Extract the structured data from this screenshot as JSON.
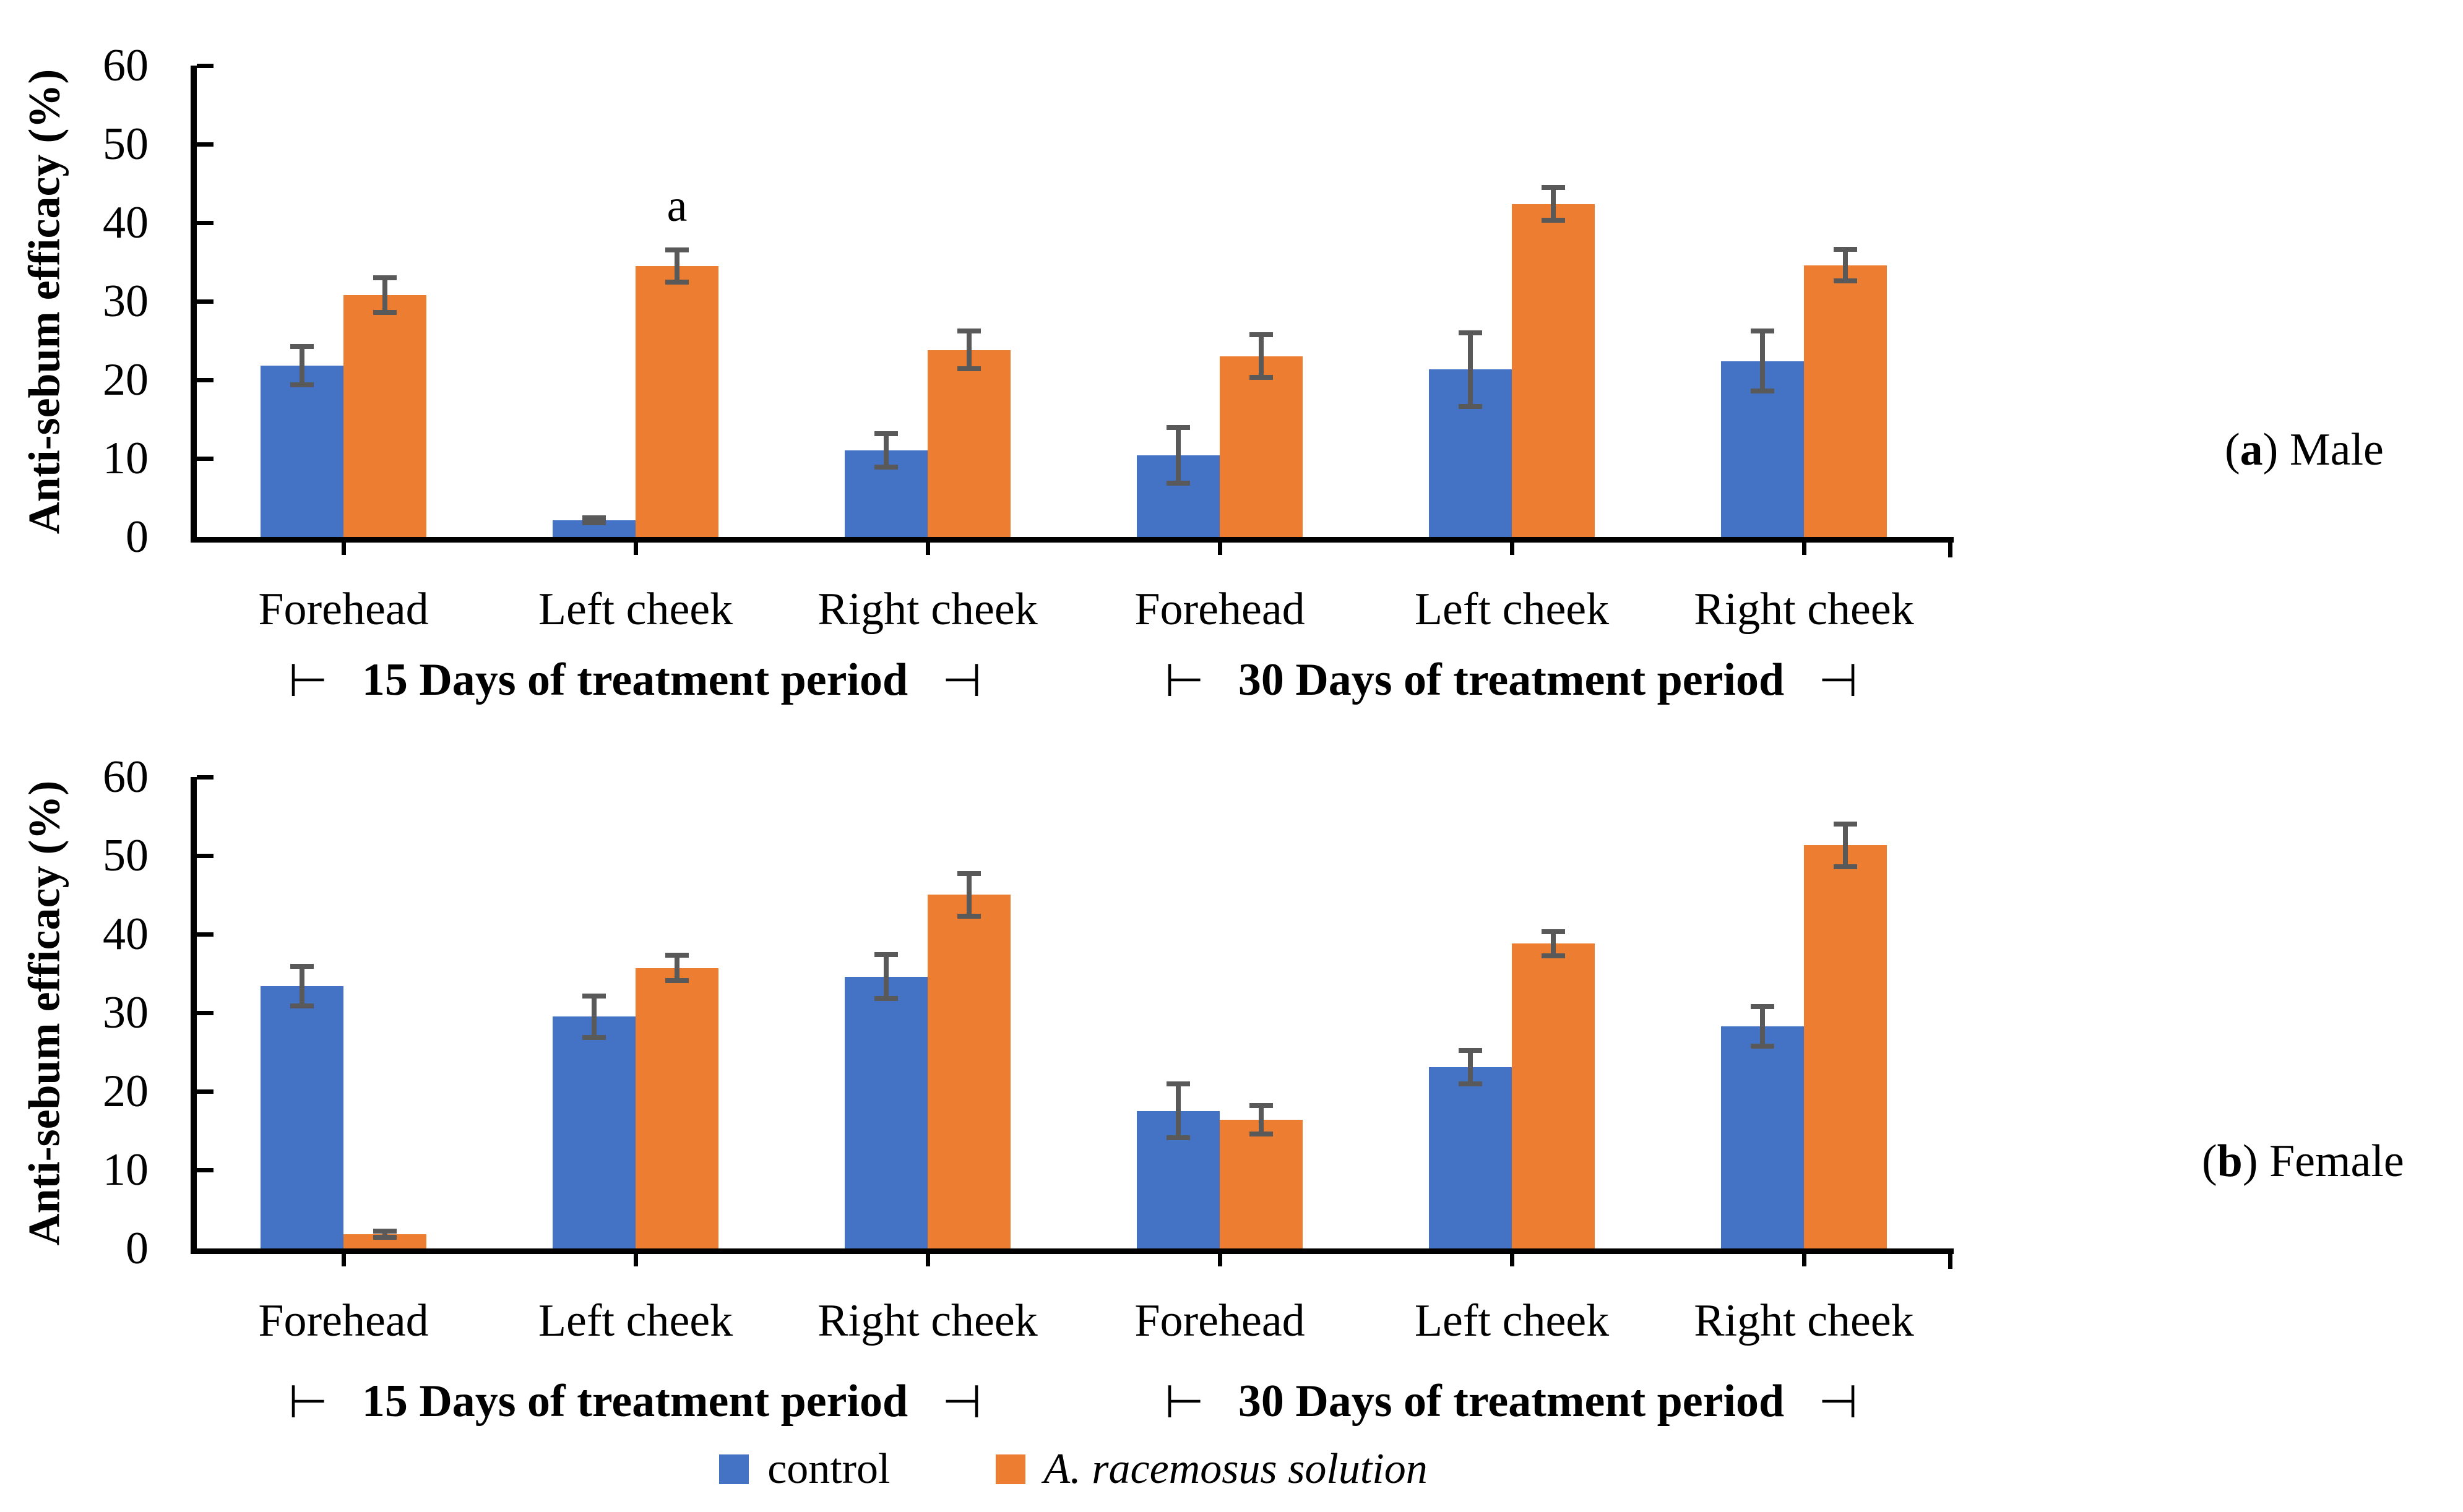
{
  "chart_data": [
    {
      "type": "bar",
      "panel": {
        "prefix": "(",
        "letter": "a",
        "suffix": ") ",
        "title": "Male"
      },
      "ylabel": "Anti-sebum efficacy (%)",
      "ylim": [
        0,
        60
      ],
      "yticks": [
        0,
        10,
        20,
        30,
        40,
        50,
        60
      ],
      "grid": false,
      "legend_position": "bottom",
      "categories": [
        "Forehead",
        "Left cheek",
        "Right cheek",
        "Forehead",
        "Left cheek",
        "Right cheek"
      ],
      "group_labels": [
        {
          "left_tack": "⊢",
          "text": "15 Days of treatment period",
          "right_tack": "⊣",
          "categories": [
            0,
            2
          ]
        },
        {
          "left_tack": "⊢",
          "text": "30 Days of treatment period",
          "right_tack": "⊣",
          "categories": [
            3,
            5
          ]
        }
      ],
      "series": [
        {
          "name": "control",
          "color": "#4472C4",
          "values": [
            21.8,
            2.1,
            11.0,
            10.4,
            21.3,
            22.4
          ],
          "errors": [
            2.5,
            0.4,
            2.2,
            3.6,
            4.8,
            3.9
          ]
        },
        {
          "name": "A. racemosus solution",
          "color": "#ED7D31",
          "values": [
            30.8,
            34.5,
            23.8,
            23.0,
            42.4,
            34.6
          ],
          "errors": [
            2.3,
            2.1,
            2.5,
            2.8,
            2.2,
            2.1
          ]
        }
      ],
      "annotations": [
        {
          "text": "a",
          "category": 1,
          "series": 1
        }
      ]
    },
    {
      "type": "bar",
      "panel": {
        "prefix": "(",
        "letter": "b",
        "suffix": ") ",
        "title": "Female"
      },
      "ylabel": "Anti-sebum efficacy (%)",
      "ylim": [
        0,
        60
      ],
      "yticks": [
        0,
        10,
        20,
        30,
        40,
        50,
        60
      ],
      "grid": false,
      "legend_position": "bottom",
      "categories": [
        "Forehead",
        "Left cheek",
        "Right cheek",
        "Forehead",
        "Left cheek",
        "Right cheek"
      ],
      "group_labels": [
        {
          "left_tack": "⊢",
          "text": "15 Days of treatment period",
          "right_tack": "⊣",
          "categories": [
            0,
            2
          ]
        },
        {
          "left_tack": "⊢",
          "text": "30 Days of treatment period",
          "right_tack": "⊣",
          "categories": [
            3,
            5
          ]
        }
      ],
      "series": [
        {
          "name": "control",
          "color": "#4472C4",
          "values": [
            33.4,
            29.5,
            34.6,
            17.5,
            23.1,
            28.3
          ],
          "errors": [
            2.6,
            2.7,
            2.9,
            3.5,
            2.2,
            2.6
          ]
        },
        {
          "name": "A. racemosus solution",
          "color": "#ED7D31",
          "values": [
            1.8,
            35.7,
            45.0,
            16.4,
            38.8,
            51.3
          ],
          "errors": [
            0.5,
            1.7,
            2.8,
            1.9,
            1.6,
            2.8
          ]
        }
      ],
      "annotations": []
    }
  ],
  "legend": {
    "items": [
      {
        "label": "control",
        "color": "#4472C4",
        "italic": false
      },
      {
        "label": "A. racemosus solution",
        "color": "#ED7D31",
        "italic": true
      }
    ]
  },
  "colors": {
    "control_bar": "#4472C4",
    "treatment_bar": "#ED7D31",
    "error_bar": "#595959",
    "axis": "#000000",
    "background": "#FFFFFF"
  }
}
